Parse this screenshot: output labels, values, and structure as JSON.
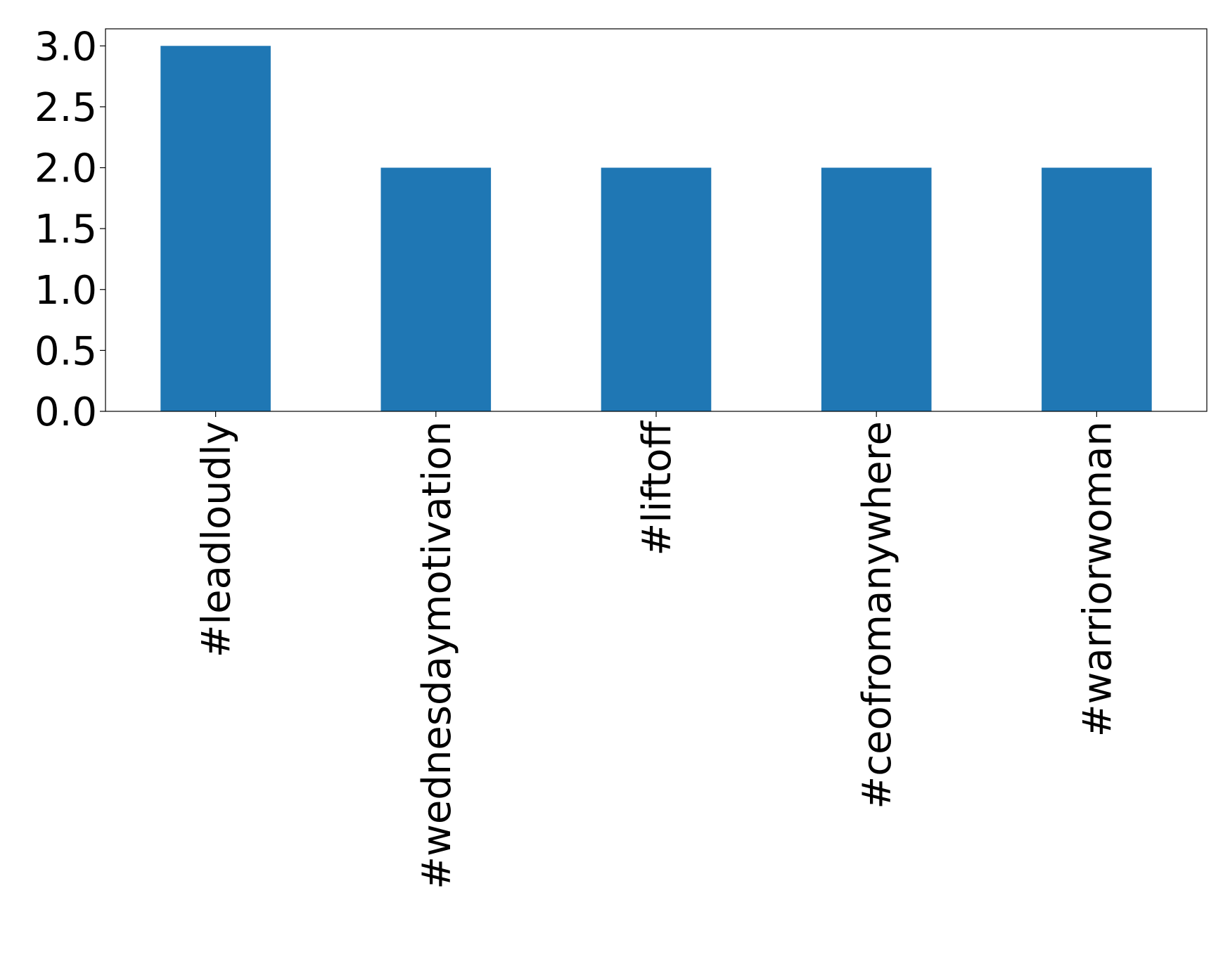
{
  "chart_data": {
    "type": "bar",
    "categories": [
      "#leadloudly",
      "#wednesdaymotivation",
      "#liftoff",
      "#ceofromanywhere",
      "#warriorwoman"
    ],
    "values": [
      3,
      2,
      2,
      2,
      2
    ],
    "color": "#1f77b4",
    "ylim": [
      0,
      3.14
    ],
    "yticks": [
      {
        "value": 0,
        "label": "0.0"
      },
      {
        "value": 0.5,
        "label": "0.5"
      },
      {
        "value": 1,
        "label": "1.0"
      },
      {
        "value": 1.5,
        "label": "1.5"
      },
      {
        "value": 2,
        "label": "2.0"
      },
      {
        "value": 2.5,
        "label": "2.5"
      },
      {
        "value": 3,
        "label": "3.0"
      }
    ],
    "grid": false
  }
}
